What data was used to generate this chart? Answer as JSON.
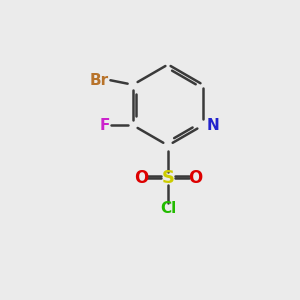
{
  "bg_color": "#ebebeb",
  "ring_color": "#3a3a3a",
  "bond_width": 1.8,
  "atom_colors": {
    "Br": "#b8732a",
    "F": "#cc22cc",
    "N": "#2222cc",
    "S": "#cccc00",
    "O": "#dd0000",
    "Cl": "#22bb00"
  },
  "atom_fontsizes": {
    "Br": 11,
    "F": 11,
    "N": 11,
    "S": 13,
    "O": 12,
    "Cl": 11
  },
  "figsize": [
    3.0,
    3.0
  ],
  "dpi": 100
}
